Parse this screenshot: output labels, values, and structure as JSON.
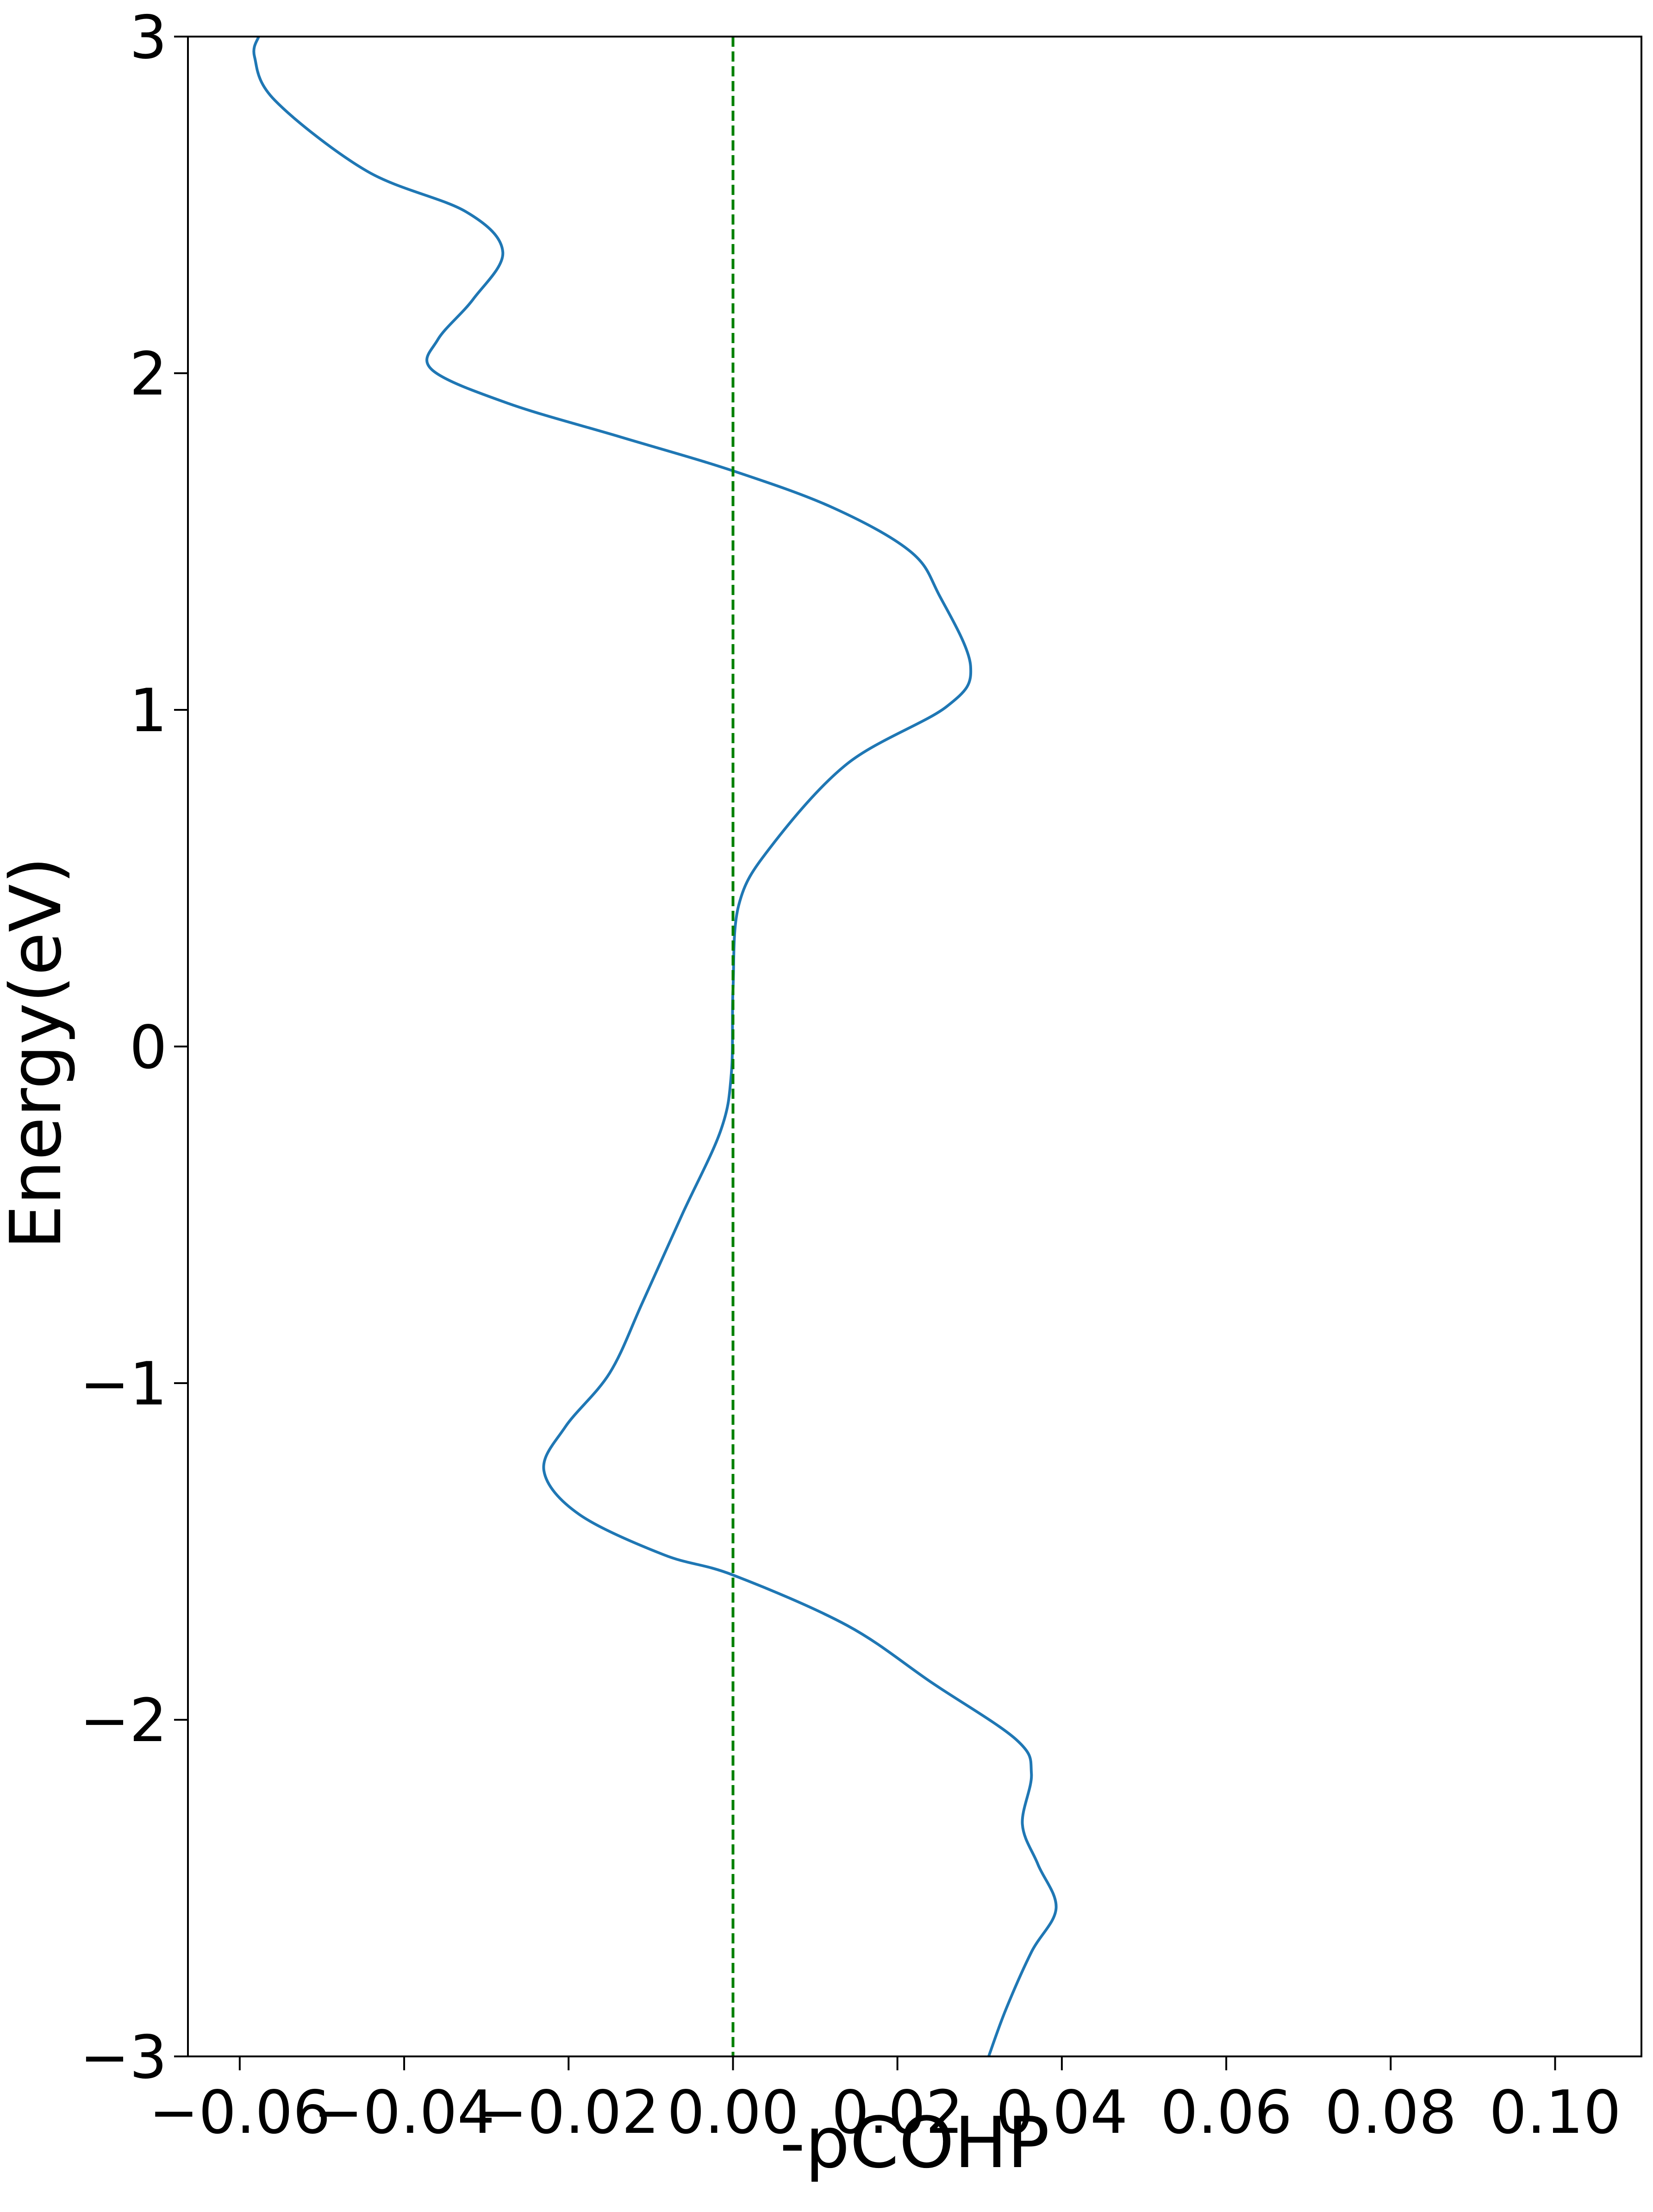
{
  "chart_data": {
    "type": "line",
    "x_label": "-pCOHP",
    "y_label": "Energy(eV)",
    "xlim": [
      -0.0663,
      0.1105
    ],
    "ylim": [
      -3,
      3
    ],
    "xticks": [
      {
        "value": -0.06,
        "label": "−0.06"
      },
      {
        "value": -0.04,
        "label": "−0.04"
      },
      {
        "value": -0.02,
        "label": "−0.02"
      },
      {
        "value": 0,
        "label": "0.00"
      },
      0.02,
      0.04,
      0.06,
      0.08,
      {
        "value": 0.1,
        "label": "0.10"
      }
    ],
    "yticks": [
      {
        "value": -3,
        "label": "−3"
      },
      {
        "value": -2,
        "label": "−2"
      },
      {
        "value": -1,
        "label": "−1"
      },
      0,
      1,
      2,
      3
    ],
    "vline": {
      "value": 0,
      "color": "#008000",
      "dashed": true
    },
    "y": [
      3.0,
      2.94,
      2.81,
      2.6,
      2.48,
      2.36,
      2.22,
      2.1,
      2.01,
      1.91,
      1.81,
      1.71,
      1.6,
      1.47,
      1.34,
      1.13,
      1.01,
      0.84,
      0.59,
      0.42,
      0.17,
      -0.08,
      -0.25,
      -0.5,
      -0.76,
      -0.97,
      -1.13,
      -1.26,
      -1.39,
      -1.51,
      -1.57,
      -1.72,
      -1.89,
      -2.06,
      -2.16,
      -2.31,
      -2.43,
      -2.56,
      -2.69,
      -2.86,
      -3.0
    ],
    "series": [
      {
        "color": "#1f77b4",
        "values": [
          -0.0577,
          -0.0582,
          -0.0557,
          -0.0445,
          -0.0325,
          -0.028,
          -0.0316,
          -0.0359,
          -0.0366,
          -0.0273,
          -0.0136,
          0.0,
          0.0122,
          0.0216,
          0.0251,
          0.0289,
          0.026,
          0.0139,
          0.0045,
          0.0007,
          0.0,
          -0.0002,
          -0.0015,
          -0.0062,
          -0.011,
          -0.015,
          -0.0204,
          -0.023,
          -0.0187,
          -0.0084,
          0.0,
          0.0139,
          0.0242,
          0.0345,
          0.0363,
          0.0352,
          0.0371,
          0.0393,
          0.0363,
          0.0332,
          0.0311
        ]
      }
    ]
  }
}
